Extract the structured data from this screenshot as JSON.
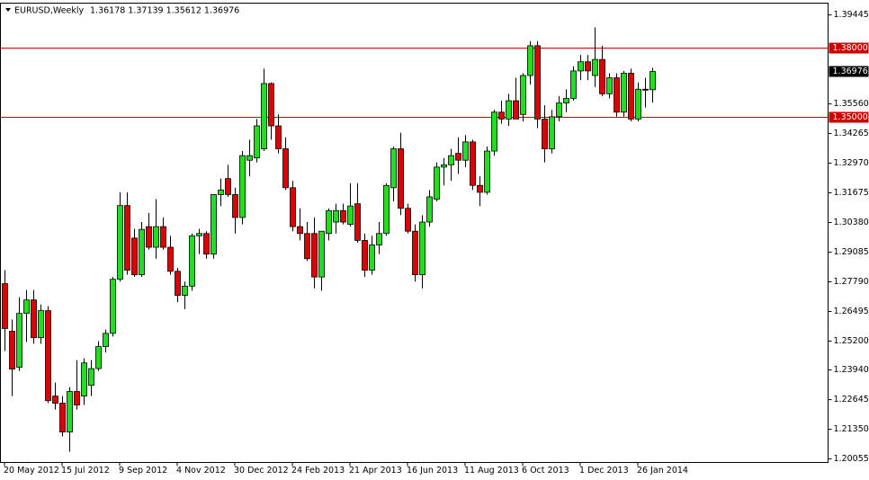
{
  "chart_data": {
    "type": "candlestick",
    "title": "EURUSD,Weekly",
    "ohlc_label": "1.36178 1.37139 1.35612 1.36976",
    "categories": [
      "20 May 2012",
      null,
      null,
      null,
      null,
      null,
      null,
      null,
      "15 Jul 2012",
      null,
      null,
      null,
      null,
      null,
      null,
      null,
      "9 Sep 2012",
      null,
      null,
      null,
      null,
      null,
      null,
      null,
      "4 Nov 2012",
      null,
      null,
      null,
      null,
      null,
      null,
      null,
      "30 Dec 2012",
      null,
      null,
      null,
      null,
      null,
      null,
      null,
      "24 Feb 2013",
      null,
      null,
      null,
      null,
      null,
      null,
      null,
      "21 Apr 2013",
      null,
      null,
      null,
      null,
      null,
      null,
      null,
      "16 Jun 2013",
      null,
      null,
      null,
      null,
      null,
      null,
      null,
      "11 Aug 2013",
      null,
      null,
      null,
      null,
      null,
      null,
      null,
      "6 Oct 2013",
      null,
      null,
      null,
      null,
      null,
      null,
      null,
      "1 Dec 2013",
      null,
      null,
      null,
      null,
      null,
      null,
      null,
      "26 Jan 2014",
      null,
      null
    ],
    "open": [
      1.2771,
      1.2563,
      1.2406,
      1.2641,
      1.27,
      1.2535,
      1.2653,
      1.228,
      1.2249,
      1.2123,
      1.23,
      1.228,
      1.2327,
      1.24,
      1.2496,
      1.2554,
      1.279,
      1.3112,
      1.297,
      1.281,
      1.302,
      1.293,
      1.302,
      1.293,
      1.2825,
      1.272,
      1.276,
      1.298,
      1.299,
      1.29,
      1.316,
      1.323,
      1.316,
      1.306,
      1.331,
      1.332,
      1.336,
      1.3645,
      1.346,
      1.336,
      1.319,
      1.302,
      1.299,
      1.299,
      1.28,
      1.299,
      1.304,
      1.309,
      1.303,
      1.312,
      1.296,
      1.283,
      1.294,
      1.299,
      1.319,
      1.336,
      1.31,
      1.3,
      1.281,
      1.304,
      1.314,
      1.328,
      1.329,
      1.334,
      1.331,
      1.339,
      1.32,
      1.317,
      1.335,
      1.352,
      1.349,
      1.357,
      1.351,
      1.368,
      1.381,
      1.349,
      1.336,
      1.35,
      1.356,
      1.358,
      1.37,
      1.374,
      1.368,
      1.375,
      1.36,
      1.367,
      1.352,
      1.369,
      1.349,
      1.362,
      1.36178
    ],
    "high": [
      1.283,
      1.2614,
      1.2712,
      1.2743,
      1.2743,
      1.268,
      1.2673,
      1.2339,
      1.228,
      1.2319,
      1.2437,
      1.2445,
      1.2437,
      1.252,
      1.257,
      1.28,
      1.317,
      1.317,
      1.301,
      1.304,
      1.308,
      1.314,
      1.306,
      1.298,
      1.284,
      1.278,
      1.299,
      1.301,
      1.3,
      1.316,
      1.323,
      1.329,
      1.319,
      1.335,
      1.34,
      1.349,
      1.371,
      1.365,
      1.351,
      1.341,
      1.322,
      1.31,
      1.304,
      1.306,
      1.3,
      1.31,
      1.312,
      1.312,
      1.321,
      1.321,
      1.299,
      1.298,
      1.304,
      1.321,
      1.337,
      1.343,
      1.312,
      1.303,
      1.307,
      1.318,
      1.33,
      1.332,
      1.336,
      1.341,
      1.342,
      1.34,
      1.324,
      1.337,
      1.353,
      1.357,
      1.36,
      1.367,
      1.369,
      1.383,
      1.383,
      1.355,
      1.353,
      1.359,
      1.362,
      1.372,
      1.377,
      1.377,
      1.389,
      1.381,
      1.369,
      1.369,
      1.37,
      1.371,
      1.365,
      1.367,
      1.37139
    ],
    "low": [
      1.2477,
      1.228,
      1.239,
      1.2516,
      1.2508,
      1.2508,
      1.2249,
      1.2221,
      1.2104,
      1.2037,
      1.2221,
      1.2241,
      1.228,
      1.239,
      1.247,
      1.254,
      1.278,
      1.281,
      1.28,
      1.28,
      1.292,
      1.288,
      1.292,
      1.281,
      1.269,
      1.266,
      1.274,
      1.29,
      1.288,
      1.288,
      1.311,
      1.315,
      1.299,
      1.303,
      1.324,
      1.33,
      1.335,
      1.34,
      1.334,
      1.318,
      1.3,
      1.296,
      1.287,
      1.275,
      1.274,
      1.296,
      1.299,
      1.303,
      1.302,
      1.295,
      1.28,
      1.281,
      1.29,
      1.298,
      1.313,
      1.307,
      1.299,
      1.278,
      1.275,
      1.302,
      1.313,
      1.32,
      1.322,
      1.325,
      1.328,
      1.318,
      1.311,
      1.316,
      1.333,
      1.347,
      1.346,
      1.349,
      1.348,
      1.364,
      1.345,
      1.33,
      1.334,
      1.348,
      1.352,
      1.357,
      1.366,
      1.366,
      1.363,
      1.359,
      1.358,
      1.35,
      1.35,
      1.348,
      1.348,
      1.354,
      1.35612
    ],
    "close": [
      1.2575,
      1.2398,
      1.2641,
      1.27,
      1.2535,
      1.2653,
      1.226,
      1.2249,
      1.2123,
      1.23,
      1.2241,
      1.2425,
      1.24,
      1.2496,
      1.2554,
      1.279,
      1.3112,
      1.283,
      1.281,
      1.3008,
      1.293,
      1.302,
      1.293,
      1.2825,
      1.272,
      1.276,
      1.298,
      1.299,
      1.29,
      1.316,
      1.318,
      1.316,
      1.306,
      1.333,
      1.333,
      1.346,
      1.3645,
      1.346,
      1.336,
      1.319,
      1.302,
      1.299,
      1.288,
      1.28,
      1.3,
      1.309,
      1.309,
      1.304,
      1.311,
      1.296,
      1.283,
      1.294,
      1.299,
      1.32,
      1.336,
      1.31,
      1.3,
      1.281,
      1.304,
      1.315,
      1.328,
      1.329,
      1.333,
      1.331,
      1.339,
      1.32,
      1.317,
      1.335,
      1.352,
      1.349,
      1.357,
      1.349,
      1.368,
      1.381,
      1.349,
      1.336,
      1.35,
      1.356,
      1.358,
      1.37,
      1.374,
      1.37,
      1.375,
      1.36,
      1.367,
      1.352,
      1.369,
      1.349,
      1.362,
      1.3618,
      1.36976
    ],
    "up_color": "#22dd22",
    "down_color": "#dd0000",
    "ylim": [
      1.199,
      1.3996
    ],
    "yticks": [
      {
        "value": 1.39445,
        "label": "1.39445"
      },
      {
        "value": 1.3556,
        "label": "1.35560"
      },
      {
        "value": 1.34265,
        "label": "1.34265"
      },
      {
        "value": 1.3297,
        "label": "1.32970"
      },
      {
        "value": 1.31675,
        "label": "1.31675"
      },
      {
        "value": 1.3038,
        "label": "1.30380"
      },
      {
        "value": 1.29085,
        "label": "1.29085"
      },
      {
        "value": 1.2779,
        "label": "1.27790"
      },
      {
        "value": 1.26495,
        "label": "1.26495"
      },
      {
        "value": 1.252,
        "label": "1.25200"
      },
      {
        "value": 1.2394,
        "label": "1.23940"
      },
      {
        "value": 1.22645,
        "label": "1.22645"
      },
      {
        "value": 1.2135,
        "label": "1.21350"
      },
      {
        "value": 1.20055,
        "label": "1.20055"
      }
    ],
    "hlines": [
      {
        "value": 1.38,
        "label": "1.38000"
      },
      {
        "value": 1.35,
        "label": "1.35000"
      }
    ],
    "hline_color": "#cc0000",
    "last_price_label": "1.36976"
  }
}
